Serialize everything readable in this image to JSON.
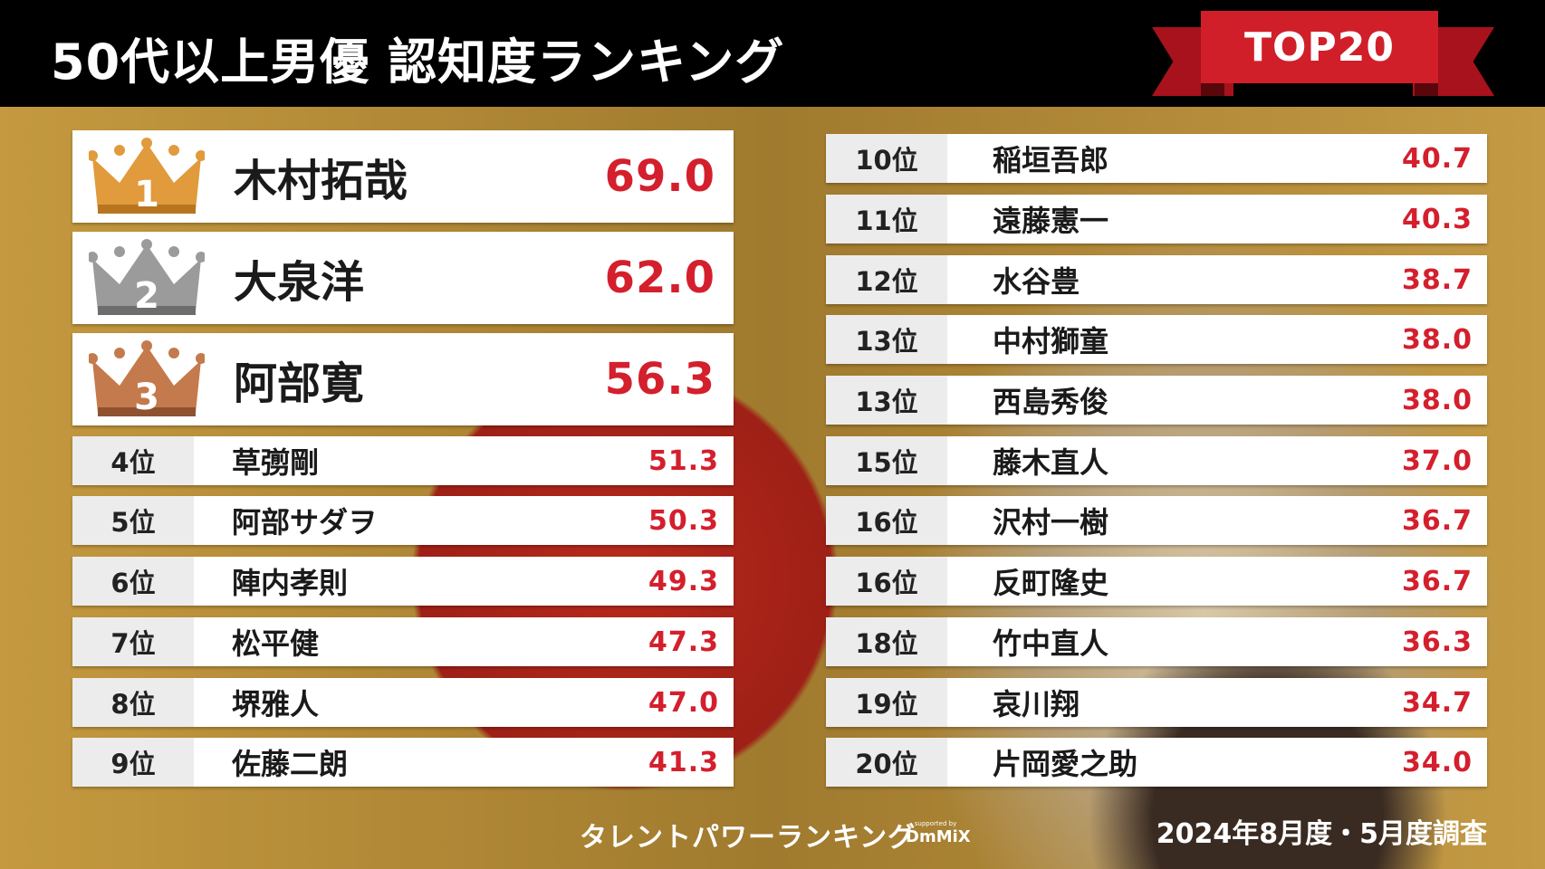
{
  "title": "50代以上男優 認知度ランキング",
  "badge": "TOP20",
  "top3": [
    {
      "rank_num": "1",
      "name": "木村拓哉",
      "score": "69.0",
      "medal": "gold-crown-icon"
    },
    {
      "rank_num": "2",
      "name": "大泉洋",
      "score": "62.0",
      "medal": "silver-crown-icon"
    },
    {
      "rank_num": "3",
      "name": "阿部寛",
      "score": "56.3",
      "medal": "bronze-crown-icon"
    }
  ],
  "left_list": [
    {
      "rank": "4位",
      "name": "草彅剛",
      "score": "51.3"
    },
    {
      "rank": "5位",
      "name": "阿部サダヲ",
      "score": "50.3"
    },
    {
      "rank": "6位",
      "name": "陣内孝則",
      "score": "49.3"
    },
    {
      "rank": "7位",
      "name": "松平健",
      "score": "47.3"
    },
    {
      "rank": "8位",
      "name": "堺雅人",
      "score": "47.0"
    },
    {
      "rank": "9位",
      "name": "佐藤二朗",
      "score": "41.3"
    }
  ],
  "right_list": [
    {
      "rank": "10位",
      "name": "稲垣吾郎",
      "score": "40.7"
    },
    {
      "rank": "11位",
      "name": "遠藤憲一",
      "score": "40.3"
    },
    {
      "rank": "12位",
      "name": "水谷豊",
      "score": "38.7"
    },
    {
      "rank": "13位",
      "name": "中村獅童",
      "score": "38.0"
    },
    {
      "rank": "13位",
      "name": "西島秀俊",
      "score": "38.0"
    },
    {
      "rank": "15位",
      "name": "藤木直人",
      "score": "37.0"
    },
    {
      "rank": "16位",
      "name": "沢村一樹",
      "score": "36.7"
    },
    {
      "rank": "16位",
      "name": "反町隆史",
      "score": "36.7"
    },
    {
      "rank": "18位",
      "name": "竹中直人",
      "score": "36.3"
    },
    {
      "rank": "19位",
      "name": "哀川翔",
      "score": "34.7"
    },
    {
      "rank": "20位",
      "name": "片岡愛之助",
      "score": "34.0"
    }
  ],
  "footer": {
    "logo": "タレントパワーランキング",
    "supported_by": "supported by",
    "sponsor": "DmMiX",
    "survey_date": "2024年8月度・5月度調査"
  },
  "colors": {
    "accent_red": "#d41f2d",
    "gold": "#e0a040",
    "silver": "#9a9a9a",
    "bronze": "#c07848"
  }
}
